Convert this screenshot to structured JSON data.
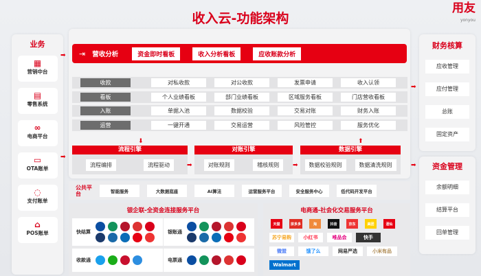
{
  "title": "收入云-功能架构",
  "brand": {
    "name": "用友",
    "sub": "yonyou"
  },
  "business": {
    "title": "业务",
    "items": [
      {
        "label": "营销中台",
        "icon": "grid-icon"
      },
      {
        "label": "零售系统",
        "icon": "register-icon"
      },
      {
        "label": "电商平台",
        "icon": "share-icon"
      },
      {
        "label": "OTA账单",
        "icon": "monitor-chart-icon"
      },
      {
        "label": "支付账单",
        "icon": "cycle-icon"
      },
      {
        "label": "POS账单",
        "icon": "store-icon"
      }
    ]
  },
  "analysis": {
    "label": "营收分析",
    "buttons": [
      "资金即时看板",
      "收入分析看板",
      "应收账款分析"
    ]
  },
  "rows": [
    {
      "label": "收款",
      "cells": [
        "对私收款",
        "对公收款",
        "发票申请",
        "收入认领"
      ]
    },
    {
      "label": "看板",
      "cells": [
        "个人业绩看板",
        "部门业绩看板",
        "区域服务看板",
        "门店营收看板"
      ]
    },
    {
      "label": "入账",
      "cells": [
        "单据入池",
        "数据校验",
        "交易对账",
        "财务入账"
      ]
    },
    {
      "label": "运营",
      "cells": [
        "一键开通",
        "交易运营",
        "风险管控",
        "服务优化"
      ]
    }
  ],
  "engines": [
    {
      "title": "流程引擎",
      "items": [
        "流程编排",
        "流程驱动"
      ]
    },
    {
      "title": "对账引擎",
      "items": [
        "对账规则",
        "稽核规则"
      ]
    },
    {
      "title": "数据引擎",
      "items": [
        "数据校验规则",
        "数据清洗规则"
      ]
    }
  ],
  "public": {
    "label": "公共平台",
    "items": [
      "智能服务",
      "大数据底座",
      "AI算法",
      "运营服务平台",
      "安全服务中心",
      "低代码开发平台"
    ]
  },
  "bank_platform": {
    "title": "银企联-全资金连接服务平台",
    "groups": [
      {
        "label": "快结算",
        "logos": [
          "ccb",
          "abc",
          "boc",
          "icbc",
          "cmb",
          "bocom",
          "spdb",
          "citi",
          "hsbc",
          "other"
        ]
      },
      {
        "label": "银账通",
        "logos": [
          "ccb",
          "abc",
          "boc",
          "icbc",
          "cmb",
          "bocom",
          "spdb",
          "citi",
          "hsbc",
          "other"
        ]
      },
      {
        "label": "收款通",
        "logos": [
          "alipay",
          "wechat",
          "unionpay",
          "yunshanfu"
        ]
      },
      {
        "label": "电票通",
        "logos": [
          "ccb",
          "abc",
          "boc",
          "icbc",
          "cmb"
        ]
      }
    ]
  },
  "ecom_platform": {
    "title": "电商通-社会化交易服务平台",
    "logos": [
      "天猫",
      "拼多多",
      "淘",
      "抖音",
      "京东",
      "美团",
      "酒仙",
      "苏宁易购",
      "小红书",
      "唯品会",
      "快手",
      "微盟",
      "饿了么",
      "网易严选",
      "小米有品",
      "Walmart"
    ]
  },
  "finance": {
    "title": "财务核算",
    "items": [
      "应收管理",
      "应付管理",
      "总账",
      "固定资产"
    ]
  },
  "funds": {
    "title": "资金管理",
    "items": [
      "余额明细",
      "结算平台",
      "回单管理"
    ]
  },
  "colors": {
    "accent": "#e60012",
    "label_gray": "#6d6d6d"
  }
}
